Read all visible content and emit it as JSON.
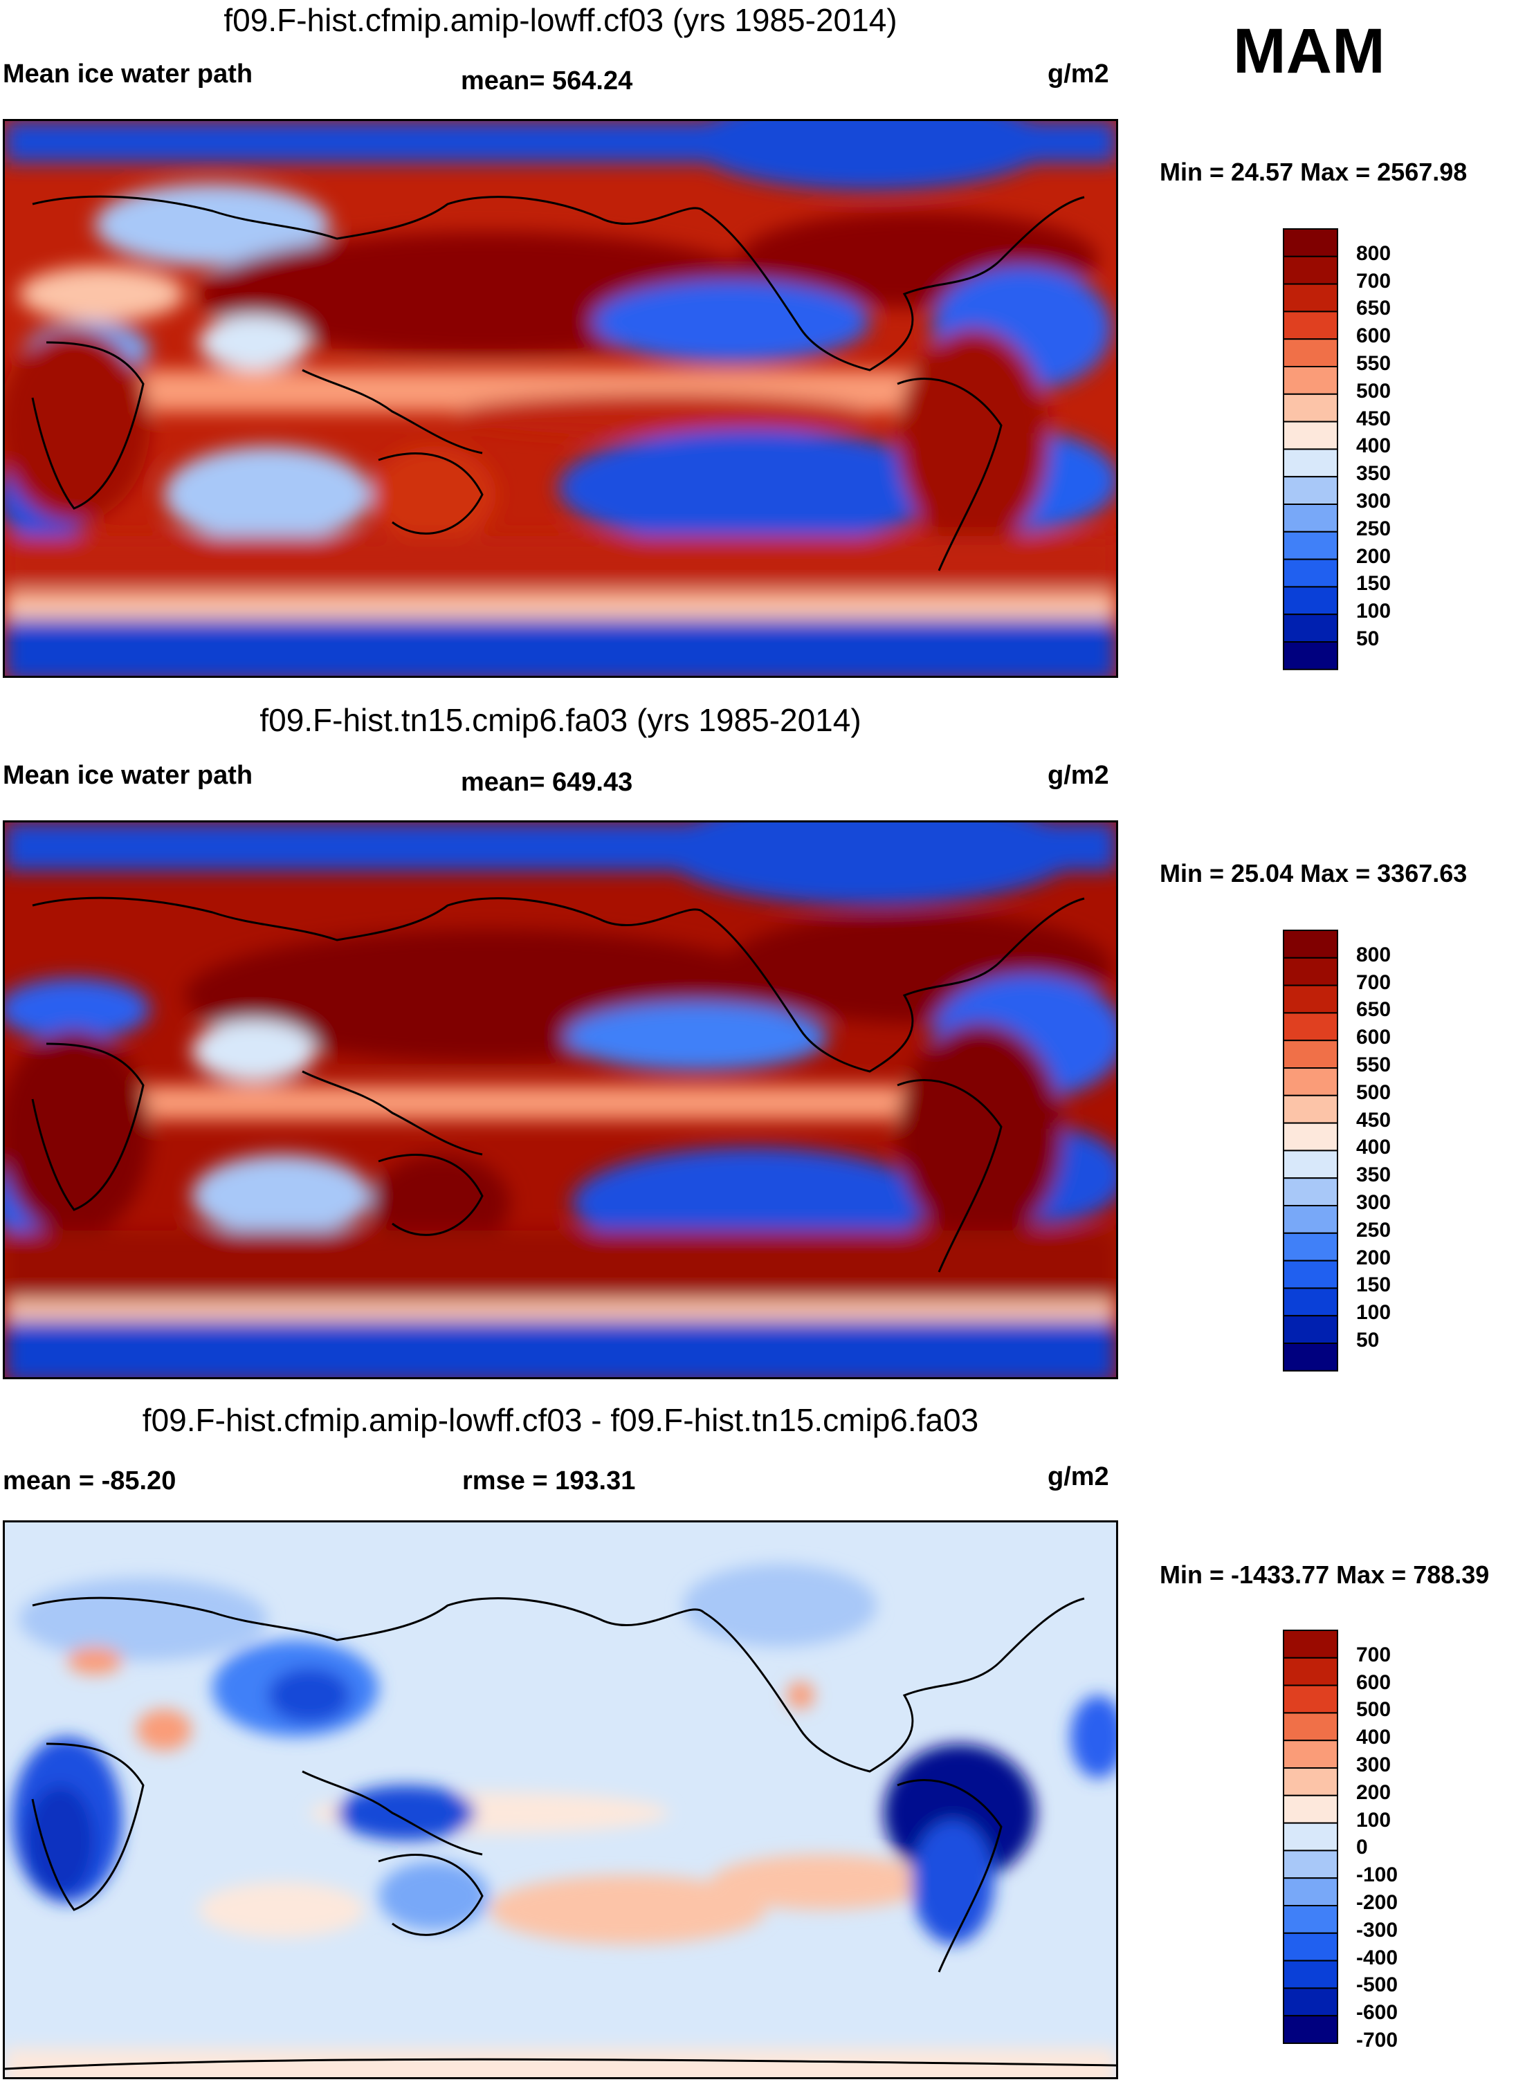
{
  "season": "MAM",
  "colors": {
    "contrast_scale": [
      "#00007f",
      "#0020b0",
      "#0a40d8",
      "#2060f0",
      "#4080f8",
      "#78a8f8",
      "#a8c8f8",
      "#d8e8fa",
      "#fde8dc",
      "#fcc4a8",
      "#fa9c78",
      "#f07048",
      "#e04020",
      "#c02008",
      "#9a0a00",
      "#800000"
    ],
    "diff_scale": [
      "#00007f",
      "#0020b0",
      "#0a40d8",
      "#2060f0",
      "#4080f8",
      "#78a8f8",
      "#a8c8f8",
      "#d8e8fa",
      "#fde8dc",
      "#fcc4a8",
      "#fa9c78",
      "#f07048",
      "#e04020",
      "#c02008",
      "#9a0a00"
    ]
  },
  "panels": [
    {
      "title": "f09.F-hist.cfmip.amip-lowff.cf03 (yrs 1985-2014)",
      "left_label": "Mean ice water path",
      "center_label": "mean= 564.24",
      "units": "g/m2",
      "minmax": "Min =  24.57 Max = 2567.98"
    },
    {
      "title": "f09.F-hist.tn15.cmip6.fa03 (yrs 1985-2014)",
      "left_label": "Mean ice water path",
      "center_label": "mean= 649.43",
      "units": "g/m2",
      "minmax": "Min =  25.04 Max = 3367.63"
    },
    {
      "title": "f09.F-hist.cfmip.amip-lowff.cf03 - f09.F-hist.tn15.cmip6.fa03",
      "left_label": "mean = -85.20",
      "center_label": "rmse = 193.31",
      "units": "g/m2",
      "minmax": "Min = -1433.77 Max = 788.39"
    }
  ],
  "chart_data": [
    {
      "type": "heatmap",
      "title": "f09.F-hist.cfmip.amip-lowff.cf03 (yrs 1985-2014)",
      "variable": "Mean ice water path",
      "units": "g/m2",
      "mean": 564.24,
      "min": 24.57,
      "max": 2567.98,
      "colorbar_levels": [
        "800",
        "700",
        "650",
        "600",
        "550",
        "500",
        "450",
        "400",
        "350",
        "300",
        "250",
        "200",
        "150",
        "100",
        "50"
      ]
    },
    {
      "type": "heatmap",
      "title": "f09.F-hist.tn15.cmip6.fa03 (yrs 1985-2014)",
      "variable": "Mean ice water path",
      "units": "g/m2",
      "mean": 649.43,
      "min": 25.04,
      "max": 3367.63,
      "colorbar_levels": [
        "800",
        "700",
        "650",
        "600",
        "550",
        "500",
        "450",
        "400",
        "350",
        "300",
        "250",
        "200",
        "150",
        "100",
        "50"
      ]
    },
    {
      "type": "heatmap",
      "title": "f09.F-hist.cfmip.amip-lowff.cf03 - f09.F-hist.tn15.cmip6.fa03",
      "variable": "difference",
      "units": "g/m2",
      "mean": -85.2,
      "rmse": 193.31,
      "min": -1433.77,
      "max": 788.39,
      "colorbar_levels": [
        "700",
        "600",
        "500",
        "400",
        "300",
        "200",
        "100",
        "0",
        "-100",
        "-200",
        "-300",
        "-400",
        "-500",
        "-600",
        "-700"
      ]
    }
  ]
}
